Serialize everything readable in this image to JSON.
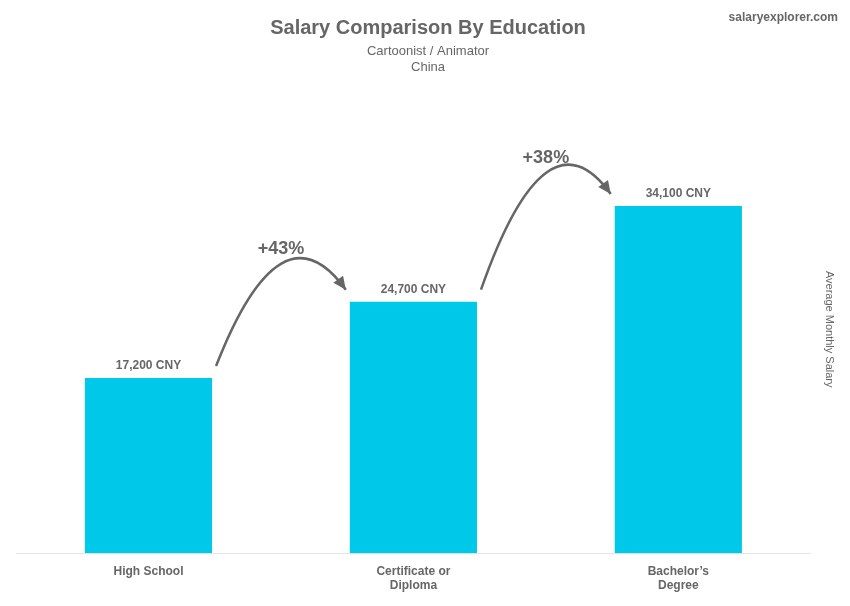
{
  "chart_data": {
    "type": "bar",
    "title": "Salary Comparison By Education",
    "subtitle": [
      "Cartoonist / Animator",
      "China"
    ],
    "ylabel": "Average Monthly Salary",
    "categories": [
      "High School",
      "Certificate or\nDiploma",
      "Bachelor’s\nDegree"
    ],
    "values": [
      17200,
      24700,
      34100
    ],
    "value_labels": [
      "17,200 CNY",
      "24,700 CNY",
      "34,100 CNY"
    ],
    "data_labels": true,
    "color": "#00c8e8",
    "ylim": [
      0,
      44000
    ],
    "grid": false,
    "tick_labels": "x",
    "annotations": [
      {
        "text": "+43%",
        "from": "High School",
        "to": "Certificate or\nDiploma"
      },
      {
        "text": "+38%",
        "from": "Certificate or\nDiploma",
        "to": "Bachelor’s\nDegree"
      },
      {
        "text": "salaryexplorer.com"
      }
    ]
  }
}
